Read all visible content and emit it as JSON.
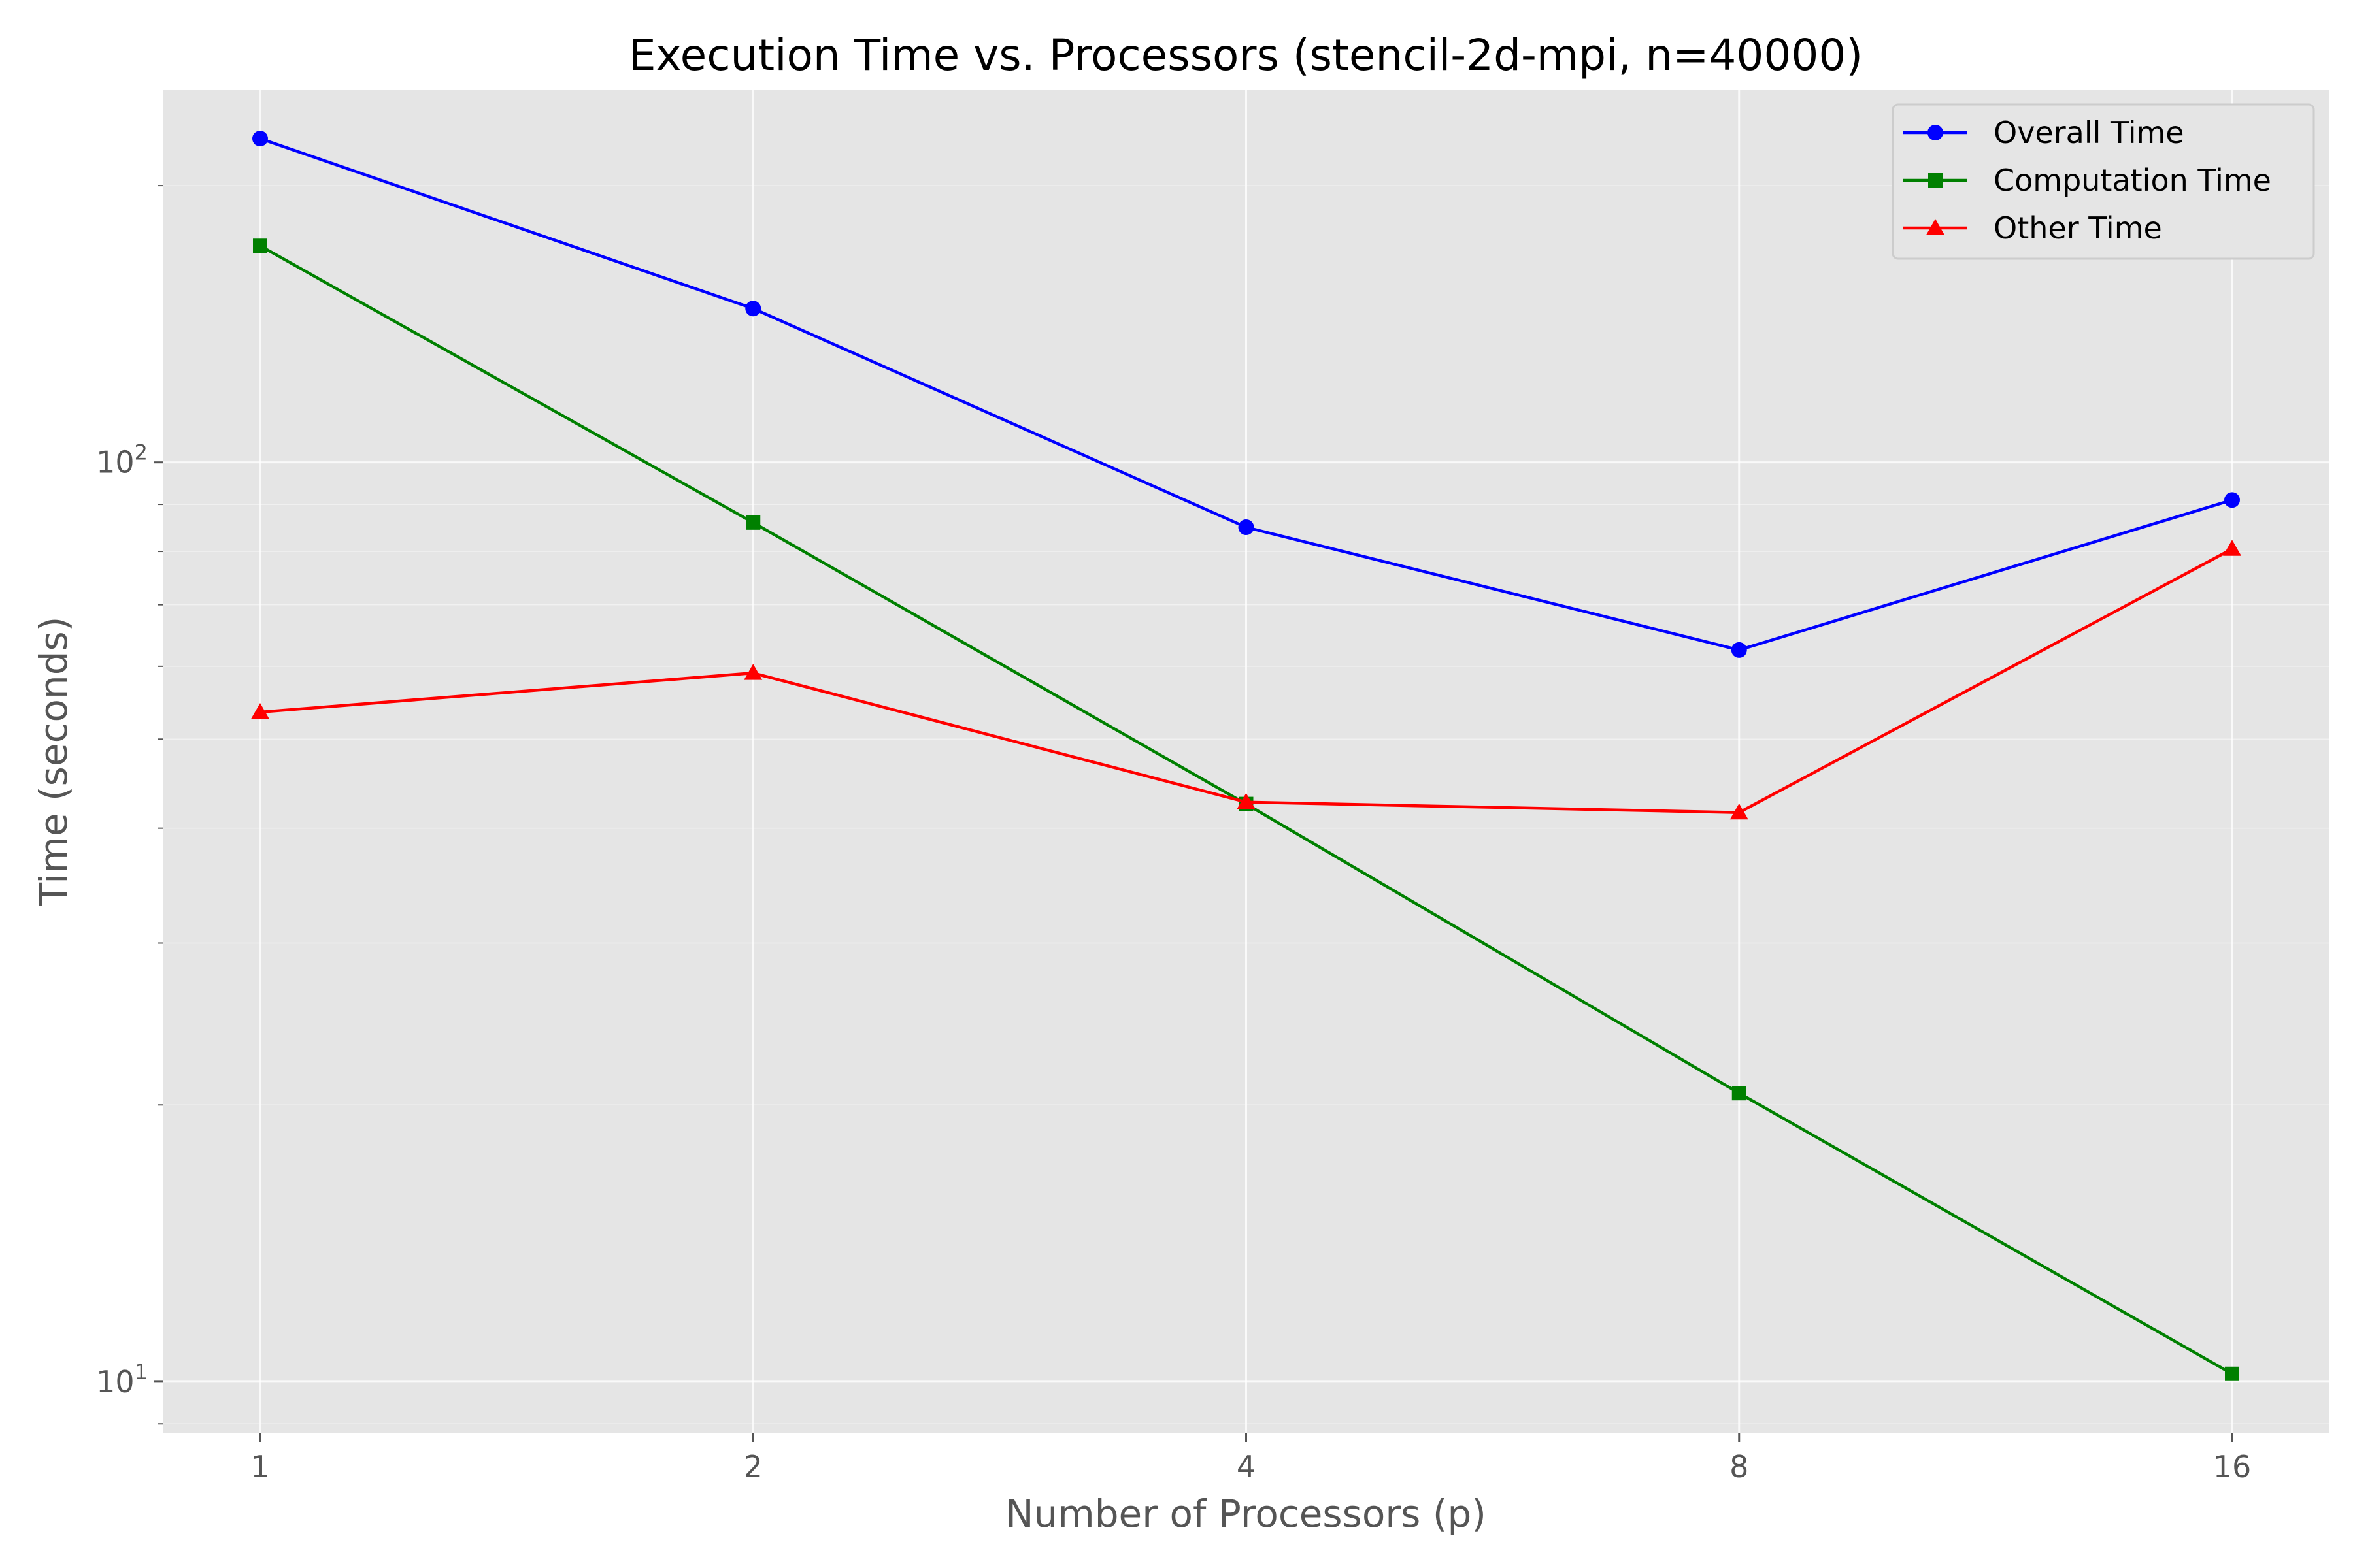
{
  "chart_data": {
    "type": "line",
    "title": "Execution Time vs. Processors (stencil-2d-mpi, n=40000)",
    "xlabel": "Number of Processors (p)",
    "ylabel": "Time (seconds)",
    "x_scale": "log2",
    "y_scale": "log10",
    "x": [
      1,
      2,
      4,
      8,
      16
    ],
    "x_tick_labels": [
      "1",
      "2",
      "4",
      "8",
      "16"
    ],
    "y_ticks": [
      {
        "value": 10,
        "base": "10",
        "exponent": "1"
      },
      {
        "value": 100,
        "base": "10",
        "exponent": "2"
      }
    ],
    "ylim": [
      8.8,
      254
    ],
    "grid": true,
    "legend_position": "top-right",
    "series": [
      {
        "name": "Overall Time",
        "color": "#0000ff",
        "marker": "circle",
        "values": [
          225,
          147,
          85,
          62.5,
          91
        ]
      },
      {
        "name": "Computation Time",
        "color": "#008000",
        "marker": "square",
        "values": [
          172,
          86,
          42.5,
          20.6,
          10.2
        ]
      },
      {
        "name": "Other Time",
        "color": "#ff0000",
        "marker": "triangle",
        "values": [
          53.5,
          59,
          42.7,
          41.6,
          80.5
        ]
      }
    ]
  }
}
